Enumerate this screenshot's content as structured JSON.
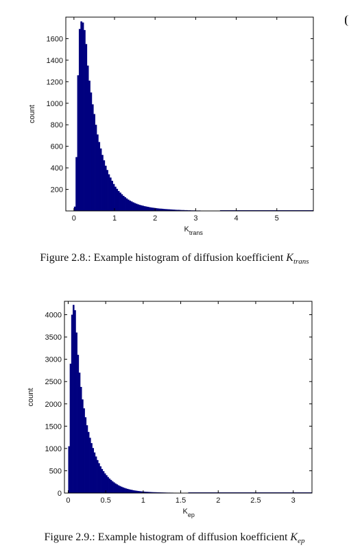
{
  "bar_color": "#00007f",
  "chart_data": [
    {
      "type": "bar",
      "xlim": [
        -0.2,
        5.9
      ],
      "ylim": [
        0,
        1800
      ],
      "xticks": [
        0,
        1,
        2,
        3,
        4,
        5
      ],
      "yticks": [
        200,
        400,
        600,
        800,
        1000,
        1200,
        1400,
        1600
      ],
      "ylabel": "count",
      "xlabel_main": "K",
      "xlabel_sub": "trans",
      "bin_width": 0.04,
      "bins_start": 0.0,
      "values": [
        40,
        500,
        1260,
        1690,
        1760,
        1750,
        1680,
        1550,
        1350,
        1210,
        1100,
        990,
        900,
        800,
        710,
        640,
        580,
        520,
        470,
        420,
        380,
        340,
        310,
        280,
        250,
        225,
        205,
        185,
        170,
        155,
        140,
        128,
        116,
        105,
        96,
        88,
        80,
        73,
        67,
        61,
        56,
        52,
        48,
        44,
        41,
        38,
        35,
        32,
        30,
        28,
        26,
        24,
        22,
        21,
        20,
        18,
        17,
        16,
        15,
        14,
        13,
        12,
        11,
        10,
        10,
        9,
        8,
        8,
        7,
        7,
        6,
        6,
        5,
        5,
        5,
        4,
        4,
        4,
        3,
        3,
        3,
        3,
        2,
        2,
        2,
        2,
        2,
        2,
        1,
        1
      ],
      "caption_prefix": "Figure 2.8.: Example histogram of diffusion koefficient ",
      "caption_symbol": "K",
      "caption_sub": "trans"
    },
    {
      "type": "bar",
      "xlim": [
        -0.05,
        3.25
      ],
      "ylim": [
        0,
        4300
      ],
      "xticks": [
        0,
        0.5,
        1,
        1.5,
        2,
        2.5,
        3
      ],
      "yticks": [
        0,
        500,
        1000,
        1500,
        2000,
        2500,
        3000,
        3500,
        4000
      ],
      "ylabel": "count",
      "xlabel_main": "K",
      "xlabel_sub": "ep",
      "bin_width": 0.02,
      "bins_start": 0.0,
      "values": [
        1050,
        2900,
        4000,
        4220,
        4100,
        3600,
        3100,
        2700,
        2380,
        2100,
        1900,
        1700,
        1520,
        1370,
        1240,
        1120,
        1010,
        910,
        820,
        740,
        670,
        600,
        540,
        490,
        440,
        400,
        360,
        325,
        295,
        265,
        240,
        215,
        195,
        175,
        158,
        142,
        128,
        115,
        104,
        94,
        85,
        77,
        70,
        63,
        57,
        52,
        47,
        43,
        39,
        36,
        33,
        30,
        28,
        26,
        24,
        22,
        20,
        19,
        18,
        17,
        16,
        15,
        14,
        13,
        12,
        11,
        10,
        10,
        9,
        9,
        8,
        8,
        7,
        7,
        7,
        6,
        6,
        6,
        5,
        5
      ],
      "caption_prefix": "Figure 2.9.: Example histogram of diffusion koefficient ",
      "caption_symbol": "K",
      "caption_sub": "ep"
    }
  ]
}
